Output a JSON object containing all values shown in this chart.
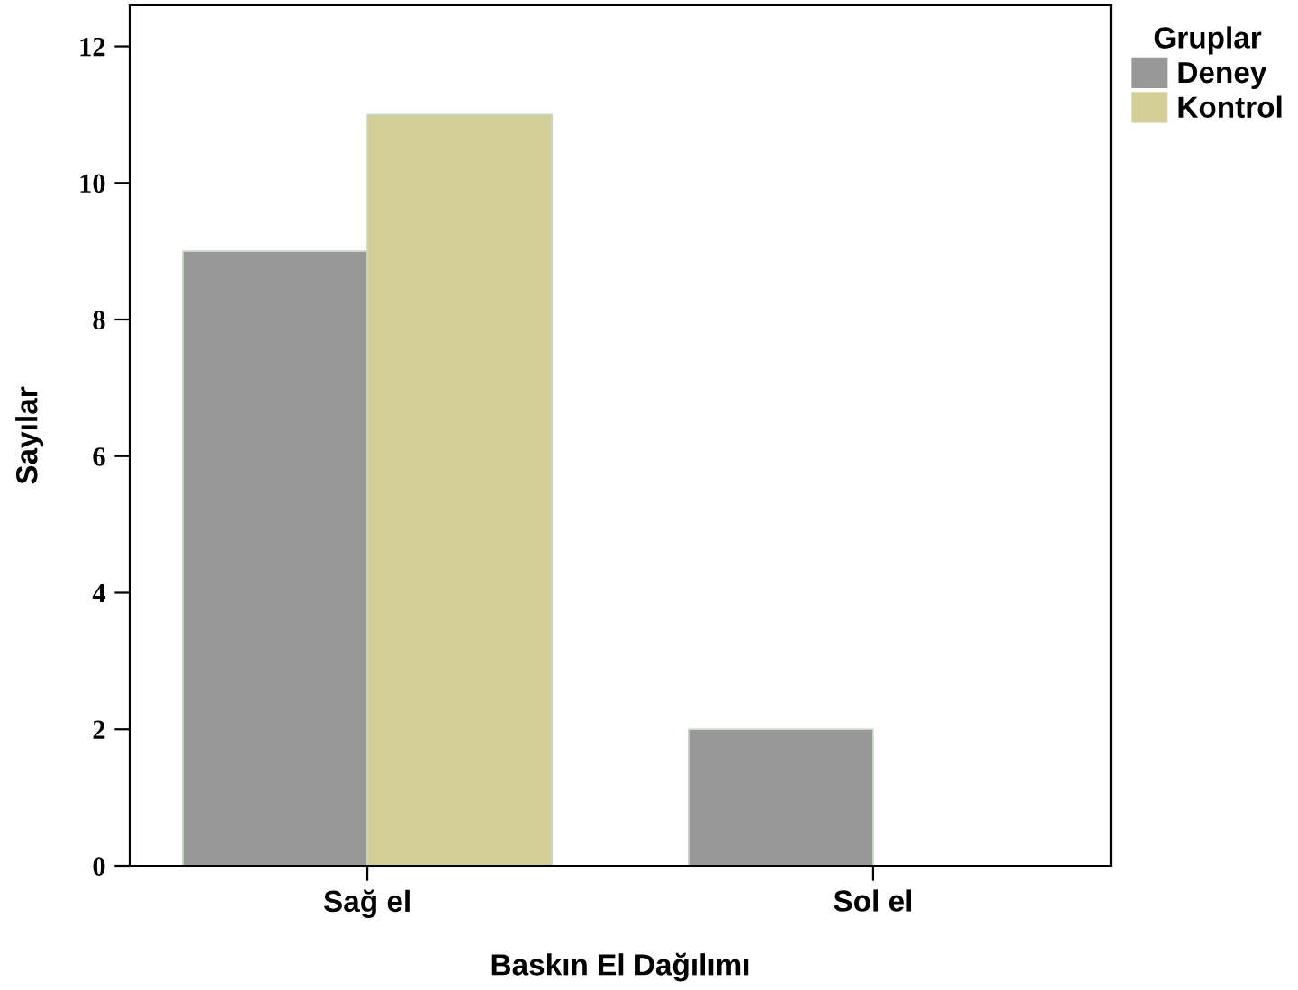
{
  "chart_data": {
    "type": "bar",
    "xlabel": "Baskın El Dağılımı",
    "ylabel": "Sayılar",
    "legend_title": "Gruplar",
    "categories": [
      "Sağ el",
      "Sol el"
    ],
    "series": [
      {
        "name": "Deney",
        "color": "#989898",
        "values": [
          9,
          2
        ]
      },
      {
        "name": "Kontrol",
        "color": "#d2cf96",
        "values": [
          11,
          null
        ]
      }
    ],
    "ylim": [
      0,
      12.6
    ],
    "yticks": [
      0,
      2,
      4,
      6,
      8,
      10,
      12
    ],
    "grid": false,
    "legend": "top right"
  }
}
